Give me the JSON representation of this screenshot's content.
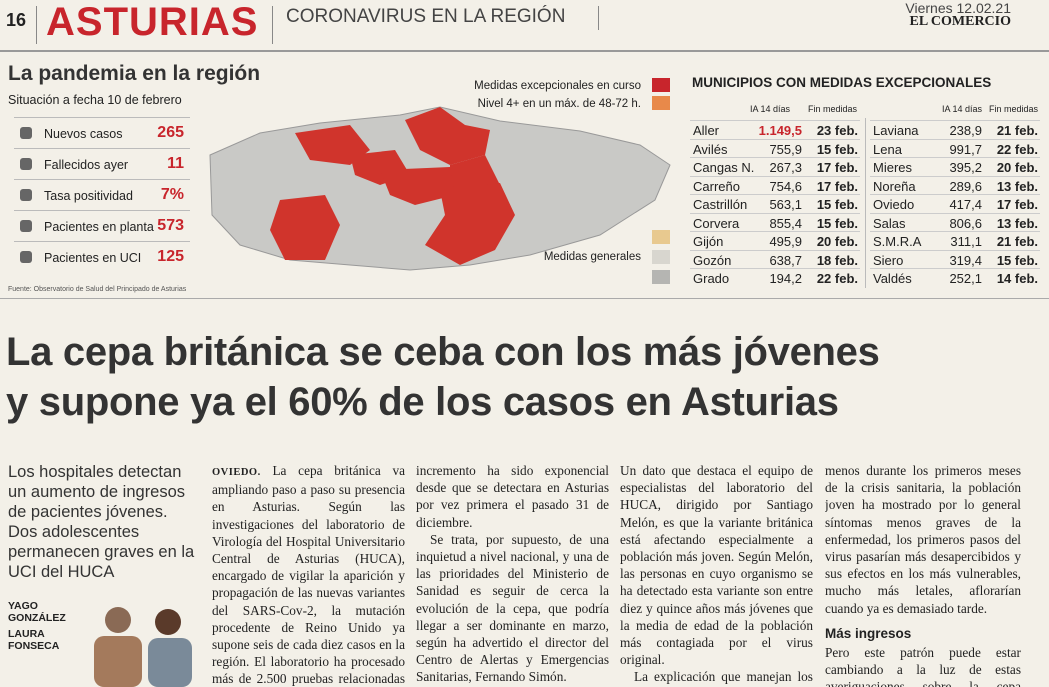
{
  "header": {
    "page": "16",
    "section": "ASTURIAS",
    "topic": "CORONAVIRUS EN LA REGIÓN",
    "date": "Viernes 12.02.21",
    "paper": "EL COMERCIO"
  },
  "infographic": {
    "title": "La pandemia en la región",
    "subtitle": "Situación a fecha 10 de febrero",
    "stats": [
      [
        "Nuevos casos",
        "265"
      ],
      [
        "Fallecidos ayer",
        "11"
      ],
      [
        "Tasa positividad",
        "7%"
      ],
      [
        "Pacientes en planta",
        "573"
      ],
      [
        "Pacientes en UCI",
        "125"
      ]
    ],
    "source": "Fuente: Observatorio de Salud del Principado de Asturias",
    "legend": {
      "exceptional": "Medidas excepcionales en curso",
      "level4": "Nivel 4+ en un máx. de 48-72 h.",
      "general": "Medidas generales"
    }
  },
  "table": {
    "title": "MUNICIPIOS CON MEDIDAS EXCEPCIONALES",
    "headers": [
      "IA 14 días",
      "Fin medidas"
    ],
    "left": [
      [
        "Aller",
        "1.149,5",
        "23 feb."
      ],
      [
        "Avilés",
        "755,9",
        "15 feb."
      ],
      [
        "Cangas N.",
        "267,3",
        "17 feb."
      ],
      [
        "Carreño",
        "754,6",
        "17 feb."
      ],
      [
        "Castrillón",
        "563,1",
        "15 feb."
      ],
      [
        "Corvera",
        "855,4",
        "15 feb."
      ],
      [
        "Gijón",
        "495,9",
        "20 feb."
      ],
      [
        "Gozón",
        "638,7",
        "18 feb."
      ],
      [
        "Grado",
        "194,2",
        "22 feb."
      ]
    ],
    "right": [
      [
        "Laviana",
        "238,9",
        "21 feb."
      ],
      [
        "Lena",
        "991,7",
        "22 feb."
      ],
      [
        "Mieres",
        "395,2",
        "20 feb."
      ],
      [
        "Noreña",
        "289,6",
        "13 feb."
      ],
      [
        "Oviedo",
        "417,4",
        "17 feb."
      ],
      [
        "Salas",
        "806,6",
        "13 feb."
      ],
      [
        "S.M.R.A",
        "311,1",
        "21 feb."
      ],
      [
        "Siero",
        "319,4",
        "15 feb."
      ],
      [
        "Valdés",
        "252,1",
        "14 feb."
      ]
    ]
  },
  "article": {
    "headline": [
      "La cepa británica se ceba con los más jóvenes",
      "y supone ya el 60% de los casos en Asturias"
    ],
    "standfirst": "Los hospitales detectan un aumento de ingresos de pacientes jóvenes. Dos adolescentes permanecen graves en la UCI del HUCA",
    "authors": [
      "YAGO GONZÁLEZ",
      "LAURA FONSECA"
    ],
    "dateline": "OVIEDO.",
    "columns": [
      [
        "La cepa británica va ampliando paso a paso su presencia en Asturias. Según las investigaciones del laboratorio de Virología del Hospital Universitario Central de Asturias (HUCA), encargado de vigilar la aparición y propagación de las nuevas variantes del SARS-Cov-2, la mutación procedente de Reino Unido ya supone seis de cada diez casos en la región. El laboratorio ha procesado más de 2.500 pruebas relacionadas con esta cepa, cuyo"
      ],
      [
        "incremento ha sido exponencial desde que se detectara en Asturias por vez primera el pasado 31 de diciembre.",
        "Se trata, por supuesto, de una inquietud a nivel nacional, y una de las prioridades del Ministerio de Sanidad es seguir de cerca la evolución de la cepa, que podría llegar a ser dominante en marzo, según ha advertido el director del Centro de Alertas y Emergencias Sanitarias, Fernando Simón."
      ],
      [
        "Un dato que destaca el equipo de especialistas del laboratorio del HUCA, dirigido por Santiago Melón, es que la variante británica está afectando especialmente a población más joven. Según Melón, las personas en cuyo organismo se ha detectado esta variante son entre diez y quince años más jóvenes que la media de edad de la población más contagiada por el virus original.",
        "La explicación que manejan los científicos del HUCA es que, ante las medidas de protección"
      ],
      [
        "menos durante los primeros meses de la crisis sanitaria, la población joven ha mostrado por lo general síntomas menos graves de la enfermedad, los primeros pasos del virus pasarían más desapercibidos y sus efectos en los más vulnerables, mucho más letales, aflorarían cuando ya es demasiado tarde."
      ]
    ],
    "subhead": "Más ingresos",
    "after_subhead": "Pero este patrón puede estar cambiando a la luz de estas averiguaciones sobre la cepa británica."
  }
}
